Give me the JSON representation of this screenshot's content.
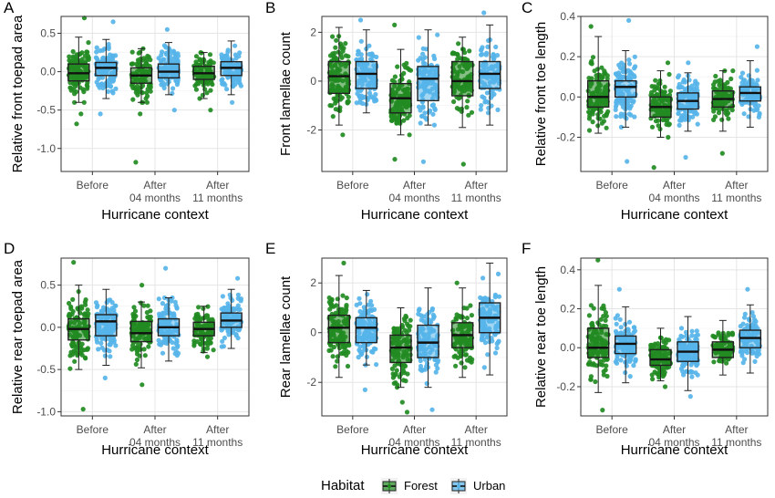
{
  "colors": {
    "forest": "#228B22",
    "urban": "#56B4E9",
    "grid": "#E5E5E5",
    "panel_border": "#333333"
  },
  "x_categories": [
    "Before",
    "After\n04 months",
    "After\n11 months"
  ],
  "legend": {
    "title": "Habitat",
    "items": [
      "Forest",
      "Urban"
    ]
  },
  "chart_data": [
    {
      "panel": "A",
      "type": "box",
      "xlabel": "Hurricane context",
      "ylabel": "Relative front toepad area",
      "ylim": [
        -1.3,
        0.72
      ],
      "yticks": [
        0.5,
        0.0,
        -0.5,
        -1.0
      ],
      "ytick_labels": [
        "0.5",
        "0.0",
        "-0.5",
        "-1.0"
      ],
      "series": [
        {
          "name": "Forest",
          "boxes": [
            {
              "min": -0.4,
              "q1": -0.12,
              "median": -0.02,
              "q3": 0.1,
              "max": 0.45,
              "spread": 0.2,
              "outliers": [
                0.7,
                -0.55,
                -0.68
              ]
            },
            {
              "min": -0.4,
              "q1": -0.15,
              "median": -0.05,
              "q3": 0.05,
              "max": 0.3,
              "spread": 0.17,
              "outliers": [
                -1.18,
                -0.55
              ]
            },
            {
              "min": -0.35,
              "q1": -0.1,
              "median": -0.02,
              "q3": 0.07,
              "max": 0.25,
              "spread": 0.15,
              "outliers": [
                -0.5
              ]
            }
          ]
        },
        {
          "name": "Urban",
          "boxes": [
            {
              "min": -0.35,
              "q1": -0.05,
              "median": 0.05,
              "q3": 0.12,
              "max": 0.42,
              "spread": 0.17,
              "outliers": [
                0.65,
                -0.55
              ]
            },
            {
              "min": -0.3,
              "q1": -0.08,
              "median": 0.0,
              "q3": 0.1,
              "max": 0.38,
              "spread": 0.16,
              "outliers": [
                0.55,
                -0.5
              ]
            },
            {
              "min": -0.3,
              "q1": -0.05,
              "median": 0.05,
              "q3": 0.13,
              "max": 0.4,
              "spread": 0.15,
              "outliers": [
                -0.4
              ]
            }
          ]
        }
      ]
    },
    {
      "panel": "B",
      "type": "box",
      "xlabel": "Hurricane context",
      "ylabel": "Front lamellae count",
      "ylim": [
        -3.7,
        2.65
      ],
      "yticks": [
        2,
        0,
        -2
      ],
      "ytick_labels": [
        "2",
        "0",
        "-2"
      ],
      "series": [
        {
          "name": "Forest",
          "boxes": [
            {
              "min": -1.8,
              "q1": -0.5,
              "median": 0.2,
              "q3": 0.8,
              "max": 2.2,
              "spread": 0.8,
              "outliers": [
                -2.2
              ]
            },
            {
              "min": -2.2,
              "q1": -1.3,
              "median": -0.7,
              "q3": -0.1,
              "max": 1.3,
              "spread": 0.75,
              "outliers": [
                2.3,
                -3.2
              ]
            },
            {
              "min": -1.9,
              "q1": -0.6,
              "median": 0.0,
              "q3": 0.8,
              "max": 1.8,
              "spread": 0.8,
              "outliers": [
                -3.4
              ]
            }
          ]
        },
        {
          "name": "Urban",
          "boxes": [
            {
              "min": -1.3,
              "q1": -0.3,
              "median": 0.3,
              "q3": 0.8,
              "max": 2.1,
              "spread": 0.75,
              "outliers": [
                2.5
              ]
            },
            {
              "min": -1.8,
              "q1": -0.8,
              "median": 0.1,
              "q3": 0.6,
              "max": 2.1,
              "spread": 0.8,
              "outliers": [
                -3.3
              ]
            },
            {
              "min": -1.8,
              "q1": -0.3,
              "median": 0.3,
              "q3": 0.8,
              "max": 2.3,
              "spread": 0.8,
              "outliers": [
                2.8
              ]
            }
          ]
        }
      ]
    },
    {
      "panel": "C",
      "type": "box",
      "xlabel": "Hurricane context",
      "ylabel": "Relative front toe length",
      "ylim": [
        -0.37,
        0.4
      ],
      "yticks": [
        0.4,
        0.2,
        0.0,
        -0.2
      ],
      "ytick_labels": [
        "0.4",
        "0.2",
        "0.0",
        "-0.2"
      ],
      "series": [
        {
          "name": "Forest",
          "boxes": [
            {
              "min": -0.18,
              "q1": -0.05,
              "median": 0.0,
              "q3": 0.08,
              "max": 0.3,
              "spread": 0.09,
              "outliers": [
                0.35
              ]
            },
            {
              "min": -0.2,
              "q1": -0.1,
              "median": -0.05,
              "q3": 0.0,
              "max": 0.13,
              "spread": 0.07,
              "outliers": [
                -0.35,
                0.17
              ]
            },
            {
              "min": -0.17,
              "q1": -0.05,
              "median": -0.01,
              "q3": 0.03,
              "max": 0.13,
              "spread": 0.06,
              "outliers": [
                -0.28
              ]
            }
          ]
        },
        {
          "name": "Urban",
          "boxes": [
            {
              "min": -0.15,
              "q1": 0.0,
              "median": 0.05,
              "q3": 0.08,
              "max": 0.23,
              "spread": 0.08,
              "outliers": [
                0.38,
                -0.32
              ]
            },
            {
              "min": -0.17,
              "q1": -0.06,
              "median": -0.02,
              "q3": 0.02,
              "max": 0.12,
              "spread": 0.07,
              "outliers": [
                -0.3,
                0.17
              ]
            },
            {
              "min": -0.15,
              "q1": -0.02,
              "median": 0.02,
              "q3": 0.05,
              "max": 0.18,
              "spread": 0.06,
              "outliers": [
                0.25
              ]
            }
          ]
        }
      ]
    },
    {
      "panel": "D",
      "type": "box",
      "xlabel": "Hurricane context",
      "ylabel": "Relative rear toepad area",
      "ylim": [
        -1.05,
        0.82
      ],
      "yticks": [
        0.5,
        0.0,
        -0.5,
        -1.0
      ],
      "ytick_labels": [
        "0.5",
        "0.0",
        "-0.5",
        "-1.0"
      ],
      "series": [
        {
          "name": "Forest",
          "boxes": [
            {
              "min": -0.5,
              "q1": -0.15,
              "median": -0.02,
              "q3": 0.1,
              "max": 0.5,
              "spread": 0.22,
              "outliers": [
                0.77,
                -0.97
              ]
            },
            {
              "min": -0.48,
              "q1": -0.17,
              "median": -0.07,
              "q3": 0.07,
              "max": 0.3,
              "spread": 0.17,
              "outliers": [
                0.5,
                -0.68
              ]
            },
            {
              "min": -0.3,
              "q1": -0.1,
              "median": -0.02,
              "q3": 0.06,
              "max": 0.25,
              "spread": 0.14,
              "outliers": [
                -0.35
              ]
            }
          ]
        },
        {
          "name": "Urban",
          "boxes": [
            {
              "min": -0.45,
              "q1": -0.1,
              "median": 0.07,
              "q3": 0.15,
              "max": 0.45,
              "spread": 0.18,
              "outliers": [
                -0.6
              ]
            },
            {
              "min": -0.4,
              "q1": -0.1,
              "median": 0.0,
              "q3": 0.1,
              "max": 0.35,
              "spread": 0.17,
              "outliers": [
                0.7
              ]
            },
            {
              "min": -0.25,
              "q1": 0.0,
              "median": 0.08,
              "q3": 0.17,
              "max": 0.45,
              "spread": 0.16,
              "outliers": [
                0.58
              ]
            }
          ]
        }
      ]
    },
    {
      "panel": "E",
      "type": "box",
      "xlabel": "Hurricane context",
      "ylabel": "Rear lamellae count",
      "ylim": [
        -3.35,
        3.0
      ],
      "yticks": [
        2,
        0,
        -2
      ],
      "ytick_labels": [
        "2",
        "0",
        "-2"
      ],
      "series": [
        {
          "name": "Forest",
          "boxes": [
            {
              "min": -1.8,
              "q1": -0.4,
              "median": 0.2,
              "q3": 0.7,
              "max": 2.3,
              "spread": 0.8,
              "outliers": [
                2.8
              ]
            },
            {
              "min": -2.2,
              "q1": -1.2,
              "median": -0.6,
              "q3": -0.1,
              "max": 1.0,
              "spread": 0.75,
              "outliers": [
                -2.8,
                -3.2
              ]
            },
            {
              "min": -1.8,
              "q1": -0.6,
              "median": -0.1,
              "q3": 0.4,
              "max": 1.8,
              "spread": 0.75,
              "outliers": [
                2.0
              ]
            }
          ]
        },
        {
          "name": "Urban",
          "boxes": [
            {
              "min": -1.3,
              "q1": -0.4,
              "median": 0.2,
              "q3": 0.6,
              "max": 1.7,
              "spread": 0.75,
              "outliers": [
                -2.3
              ]
            },
            {
              "min": -2.2,
              "q1": -1.0,
              "median": -0.4,
              "q3": 0.3,
              "max": 1.8,
              "spread": 0.8,
              "outliers": [
                -3.1
              ]
            },
            {
              "min": -1.7,
              "q1": 0.0,
              "median": 0.6,
              "q3": 1.2,
              "max": 2.8,
              "spread": 0.85,
              "outliers": []
            }
          ]
        }
      ]
    },
    {
      "panel": "F",
      "type": "box",
      "xlabel": "Hurricane context",
      "ylabel": "Relative rear toe length",
      "ylim": [
        -0.35,
        0.46
      ],
      "yticks": [
        0.4,
        0.2,
        0.0,
        -0.2
      ],
      "ytick_labels": [
        "0.4",
        "0.2",
        "0.0",
        "-0.2"
      ],
      "series": [
        {
          "name": "Forest",
          "boxes": [
            {
              "min": -0.23,
              "q1": -0.05,
              "median": 0.0,
              "q3": 0.1,
              "max": 0.32,
              "spread": 0.1,
              "outliers": [
                0.45,
                -0.32
              ]
            },
            {
              "min": -0.17,
              "q1": -0.09,
              "median": -0.06,
              "q3": -0.01,
              "max": 0.1,
              "spread": 0.06,
              "outliers": [
                -0.2
              ]
            },
            {
              "min": -0.14,
              "q1": -0.05,
              "median": -0.01,
              "q3": 0.03,
              "max": 0.14,
              "spread": 0.05,
              "outliers": []
            }
          ]
        },
        {
          "name": "Urban",
          "boxes": [
            {
              "min": -0.18,
              "q1": -0.03,
              "median": 0.02,
              "q3": 0.06,
              "max": 0.21,
              "spread": 0.07,
              "outliers": [
                0.3
              ]
            },
            {
              "min": -0.22,
              "q1": -0.07,
              "median": -0.02,
              "q3": 0.03,
              "max": 0.16,
              "spread": 0.07,
              "outliers": [
                -0.25
              ]
            },
            {
              "min": -0.13,
              "q1": 0.0,
              "median": 0.05,
              "q3": 0.09,
              "max": 0.22,
              "spread": 0.07,
              "outliers": [
                0.3
              ]
            }
          ]
        }
      ]
    }
  ]
}
